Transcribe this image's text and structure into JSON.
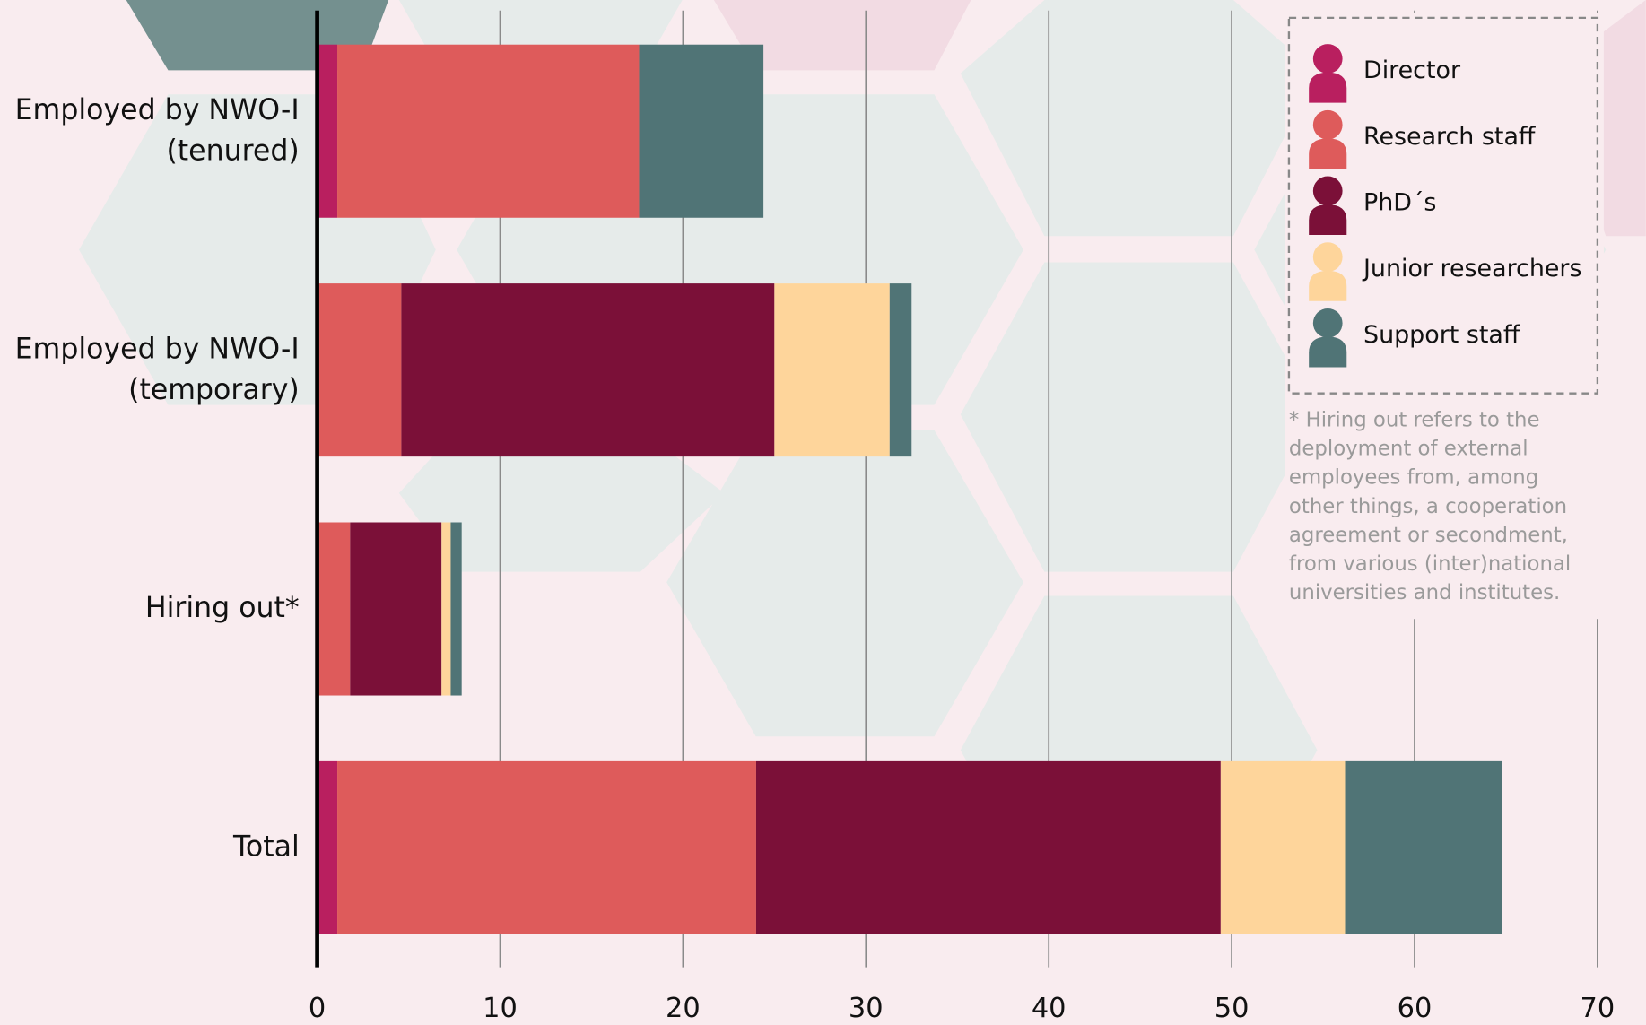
{
  "chart_data": {
    "type": "bar",
    "orientation": "horizontal",
    "stacked": true,
    "categories": [
      "Employed by NWO-I (tenured)",
      "Employed by NWO-I (temporary)",
      "Hiring out*",
      "Total"
    ],
    "series": [
      {
        "name": "Director",
        "color": "#b91f5f",
        "values": [
          1.1,
          0,
          0,
          1.1
        ]
      },
      {
        "name": "Research staff",
        "color": "#de5b5b",
        "values": [
          16.5,
          4.6,
          1.8,
          22.9
        ]
      },
      {
        "name": "PhD´s",
        "color": "#7b1038",
        "values": [
          0,
          20.4,
          5.0,
          25.4
        ]
      },
      {
        "name": "Junior researchers",
        "color": "#fed59b",
        "values": [
          0,
          6.3,
          0.5,
          6.8
        ]
      },
      {
        "name": "Support staff",
        "color": "#507476",
        "values": [
          6.8,
          1.2,
          0.6,
          8.6
        ]
      }
    ],
    "xlim": [
      0,
      70
    ],
    "xticks": [
      0,
      10,
      20,
      30,
      40,
      50,
      60,
      70
    ],
    "grid": true,
    "legend": "upper right",
    "note_lines": [
      "* Hiring out refers to the",
      "deployment of external",
      "employees from, among",
      "other things, a cooperation",
      "agreement or secondment,",
      "from various (inter)national",
      "universities and institutes."
    ]
  }
}
